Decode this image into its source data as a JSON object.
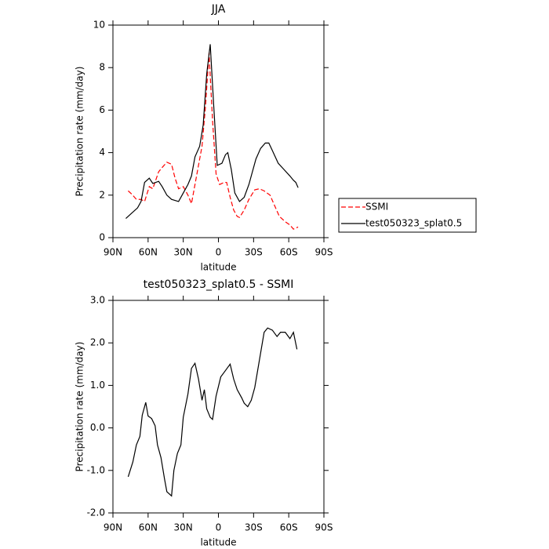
{
  "chart_data": [
    {
      "type": "line",
      "title": "JJA",
      "xlabel": "latitude",
      "ylabel": "Precipitation rate (mm/day)",
      "x": [
        79,
        69,
        66,
        63,
        59,
        56,
        51,
        48,
        44,
        40,
        34,
        30,
        26,
        23,
        20,
        16,
        13,
        10,
        7,
        4,
        1,
        -3,
        -6,
        -8,
        -11,
        -14,
        -18,
        -22,
        -26,
        -32,
        -36,
        -40,
        -43,
        -46,
        -51,
        -56,
        -61,
        -64,
        -66,
        -68
      ],
      "series": [
        {
          "name": "SSMI",
          "color": "#ff0000",
          "linestyle": "dashed",
          "x": [
            77,
            74,
            70,
            66,
            63,
            59,
            56,
            51,
            48,
            44,
            40,
            37,
            34,
            30,
            26,
            23,
            20,
            17,
            14,
            11,
            8,
            5,
            2,
            -1,
            -5,
            -7,
            -10,
            -13,
            -16,
            -18,
            -22,
            -26,
            -31,
            -35,
            -39,
            -44,
            -48,
            -52,
            -57,
            -61,
            -64,
            -68
          ],
          "values": [
            2.2,
            2.05,
            1.8,
            1.8,
            1.7,
            2.4,
            2.3,
            3.1,
            3.3,
            3.55,
            3.45,
            2.8,
            2.3,
            2.4,
            2.0,
            1.6,
            2.5,
            3.4,
            4.3,
            6.2,
            8.7,
            5.5,
            3.0,
            2.5,
            2.6,
            2.6,
            1.9,
            1.3,
            1.0,
            0.95,
            1.3,
            1.8,
            2.25,
            2.3,
            2.2,
            2.0,
            1.5,
            1.0,
            0.75,
            0.6,
            0.4,
            0.5
          ]
        },
        {
          "name": "test050323_splat0.5",
          "color": "#000000",
          "linestyle": "solid",
          "values": [
            0.9,
            1.4,
            1.7,
            2.6,
            2.8,
            2.55,
            2.65,
            2.4,
            2.0,
            1.8,
            1.7,
            2.1,
            2.5,
            2.9,
            3.8,
            4.3,
            5.3,
            7.7,
            9.1,
            6.2,
            3.4,
            3.5,
            3.9,
            4.0,
            3.2,
            2.1,
            1.7,
            1.9,
            2.5,
            3.7,
            4.2,
            4.45,
            4.45,
            4.1,
            3.5,
            3.2,
            2.9,
            2.7,
            2.6,
            2.35
          ]
        }
      ],
      "xlim": [
        90,
        -90
      ],
      "xticks": [
        {
          "value": 90,
          "label": "90N"
        },
        {
          "value": 60,
          "label": "60N"
        },
        {
          "value": 30,
          "label": "30N"
        },
        0,
        {
          "value": -30,
          "label": "30S"
        },
        {
          "value": -60,
          "label": "60S"
        },
        {
          "value": -90,
          "label": "90S"
        }
      ],
      "ylim": [
        0,
        10
      ],
      "yticks": [
        0,
        2,
        4,
        6,
        8,
        10
      ],
      "legend": "right"
    },
    {
      "type": "line",
      "title": "test050323_splat0.5 - SSMI",
      "xlabel": "latitude",
      "ylabel": "Precipitation rate (mm/day)",
      "color": "#000000",
      "x": [
        77,
        73,
        70,
        67,
        65,
        62,
        60,
        57,
        54,
        52,
        49,
        46,
        44,
        40,
        38,
        35,
        32,
        30,
        26,
        23,
        20,
        17,
        14,
        12,
        10,
        7,
        5,
        2,
        -2,
        -6,
        -10,
        -13,
        -16,
        -20,
        -22,
        -25,
        -28,
        -31,
        -35,
        -39,
        -42,
        -46,
        -50,
        -53,
        -57,
        -61,
        -64,
        -67
      ],
      "values": [
        -1.15,
        -0.8,
        -0.4,
        -0.2,
        0.3,
        0.6,
        0.28,
        0.22,
        0.05,
        -0.4,
        -0.7,
        -1.2,
        -1.5,
        -1.6,
        -1.0,
        -0.6,
        -0.4,
        0.25,
        0.8,
        1.4,
        1.52,
        1.15,
        0.65,
        0.9,
        0.45,
        0.25,
        0.2,
        0.75,
        1.2,
        1.35,
        1.5,
        1.15,
        0.9,
        0.7,
        0.58,
        0.5,
        0.65,
        0.95,
        1.6,
        2.25,
        2.35,
        2.3,
        2.15,
        2.25,
        2.25,
        2.1,
        2.25,
        1.85
      ],
      "xlim": [
        90,
        -90
      ],
      "xticks": [
        {
          "value": 90,
          "label": "90N"
        },
        {
          "value": 60,
          "label": "60N"
        },
        {
          "value": 30,
          "label": "30N"
        },
        0,
        {
          "value": -30,
          "label": "30S"
        },
        {
          "value": -60,
          "label": "60S"
        },
        {
          "value": -90,
          "label": "90S"
        }
      ],
      "ylim": [
        -2,
        3
      ],
      "yticks": [
        {
          "value": -2,
          "label": "-2.0"
        },
        {
          "value": -1,
          "label": "-1.0"
        },
        {
          "value": 0,
          "label": "0.0"
        },
        {
          "value": 1,
          "label": "1.0"
        },
        {
          "value": 2,
          "label": "2.0"
        },
        {
          "value": 3,
          "label": "3.0"
        }
      ]
    }
  ]
}
